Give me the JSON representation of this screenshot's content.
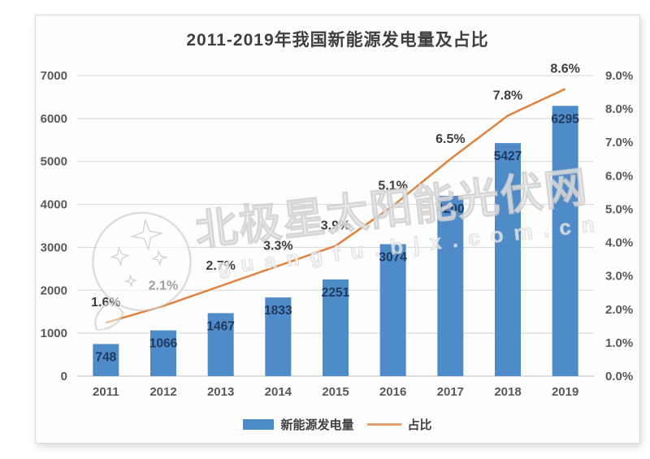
{
  "title": "2011-2019年我国新能源发电量及占比",
  "watermark": {
    "brand": "北极星太阳能光伏网",
    "domain": "guangfu.bjx.com.cn"
  },
  "chart_data": {
    "type": "bar",
    "combo": "bar+line",
    "title": "2011-2019年我国新能源发电量及占比",
    "categories": [
      "2011",
      "2012",
      "2013",
      "2014",
      "2015",
      "2016",
      "2017",
      "2018",
      "2019"
    ],
    "series": [
      {
        "name": "新能源发电量",
        "type": "bar",
        "axis": "left",
        "color": "#4f8bc9",
        "values": [
          748,
          1066,
          1467,
          1833,
          2251,
          3074,
          4200,
          5427,
          6295
        ]
      },
      {
        "name": "占比",
        "type": "line",
        "axis": "right",
        "color": "#e0813c",
        "values": [
          1.6,
          2.1,
          2.7,
          3.3,
          3.9,
          5.1,
          6.5,
          7.8,
          8.6
        ],
        "point_labels": [
          "1.6%",
          "2.1%",
          "2.7%",
          "3.3%",
          "3.9%",
          "5.1%",
          "6.5%",
          "7.8%",
          "8.6%"
        ]
      }
    ],
    "left_axis": {
      "min": 0,
      "max": 7000,
      "step": 1000,
      "ticks": [
        "0",
        "1000",
        "2000",
        "3000",
        "4000",
        "5000",
        "6000",
        "7000"
      ]
    },
    "right_axis": {
      "min": 0,
      "max": 9,
      "step": 1,
      "ticks": [
        "0.0%",
        "1.0%",
        "2.0%",
        "3.0%",
        "4.0%",
        "5.0%",
        "6.0%",
        "7.0%",
        "8.0%",
        "9.0%"
      ]
    },
    "grid": true,
    "legend_position": "bottom"
  },
  "colors": {
    "bar": "#4f8bc9",
    "line": "#e0813c",
    "bar_label": "#1f3a5f",
    "pct_label": "#3d3d3d",
    "axis_label": "#595959",
    "title": "#3f3f3f",
    "gridline": "#d6d6d6",
    "baseline": "#c0c0c0",
    "card_border": "#d9d9d9",
    "card_bg": "#fdfdfd"
  }
}
